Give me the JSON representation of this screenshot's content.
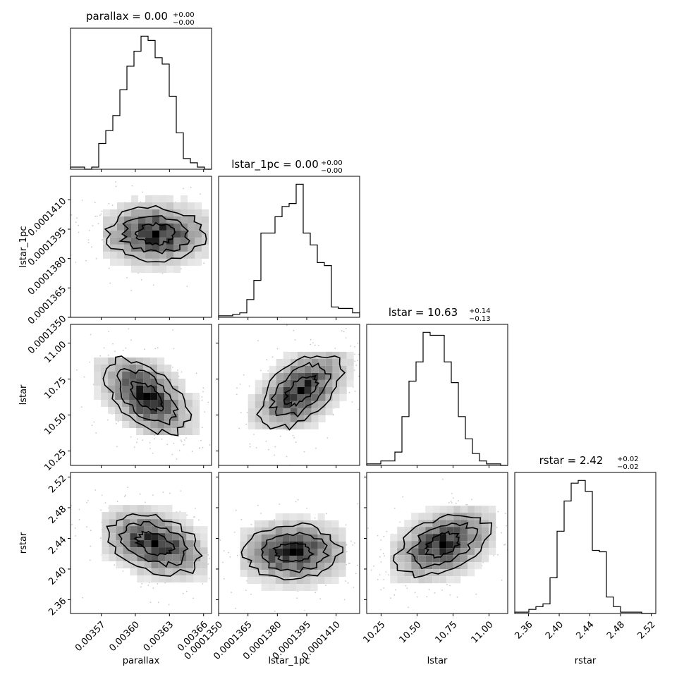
{
  "chart_data": {
    "type": "corner",
    "params": [
      "parallax",
      "lstar_1pc",
      "lstar",
      "rstar"
    ],
    "titles": [
      {
        "param": "parallax",
        "label": "parallax = 0.00",
        "plus": "+0.00",
        "minus": "−0.00"
      },
      {
        "param": "lstar_1pc",
        "label": "lstar_1pc = 0.00",
        "plus": "+0.00",
        "minus": "−0.00"
      },
      {
        "param": "lstar",
        "label": "lstar = 10.63",
        "plus": "+0.14",
        "minus": "−0.13"
      },
      {
        "param": "rstar",
        "label": "rstar = 2.42",
        "plus": "+0.02",
        "minus": "−0.02"
      }
    ],
    "axes": [
      {
        "name": "parallax",
        "range": [
          0.003543,
          0.003667
        ],
        "ticks": [
          0.00357,
          0.0036,
          0.00363,
          0.00366
        ],
        "tick_labels": [
          "0.00357",
          "0.00360",
          "0.00363",
          "0.00366"
        ]
      },
      {
        "name": "lstar_1pc",
        "range": [
          0.000135,
          0.0001422
        ],
        "ticks": [
          0.000135,
          0.0001365,
          0.000138,
          0.0001395,
          0.000141
        ],
        "tick_labels": [
          "0.0001350",
          "0.0001365",
          "0.0001380",
          "0.0001395",
          "0.0001410"
        ]
      },
      {
        "name": "lstar",
        "range": [
          10.15,
          11.13
        ],
        "ticks": [
          10.25,
          10.5,
          10.75,
          11.0
        ],
        "tick_labels": [
          "10.25",
          "10.50",
          "10.75",
          "11.00"
        ]
      },
      {
        "name": "rstar",
        "range": [
          2.342,
          2.526
        ],
        "ticks": [
          2.36,
          2.4,
          2.44,
          2.48,
          2.52
        ],
        "tick_labels": [
          "2.36",
          "2.40",
          "2.44",
          "2.48",
          "2.52"
        ]
      }
    ],
    "histograms": [
      {
        "param": "parallax",
        "counts": [
          1,
          1,
          0,
          1,
          12,
          18,
          25,
          37,
          48,
          55,
          62,
          60,
          52,
          49,
          34,
          17,
          5,
          3,
          1,
          0
        ]
      },
      {
        "param": "lstar_1pc",
        "counts": [
          1,
          1,
          2,
          3,
          12,
          25,
          57,
          57,
          68,
          75,
          77,
          90,
          57,
          49,
          37,
          35,
          7,
          6,
          6,
          3
        ]
      },
      {
        "param": "lstar",
        "counts": [
          1,
          1,
          3,
          3,
          9,
          33,
          57,
          70,
          90,
          88,
          88,
          70,
          56,
          33,
          18,
          8,
          3,
          1,
          1,
          0
        ]
      },
      {
        "param": "rstar",
        "counts": [
          1,
          1,
          3,
          5,
          7,
          26,
          60,
          82,
          95,
          97,
          89,
          46,
          45,
          12,
          5,
          1,
          1,
          1,
          0,
          0
        ]
      }
    ],
    "peaks": [
      {
        "row": "lstar_1pc",
        "col": "parallax",
        "x": 0.003618,
        "y": 0.00013925
      },
      {
        "row": "lstar",
        "col": "parallax",
        "x": 0.00361,
        "y": 10.63
      },
      {
        "row": "lstar",
        "col": "lstar_1pc",
        "x": 0.0001392,
        "y": 10.67
      },
      {
        "row": "rstar",
        "col": "parallax",
        "x": 0.003617,
        "y": 2.433
      },
      {
        "row": "rstar",
        "col": "lstar_1pc",
        "x": 0.0001388,
        "y": 2.422
      },
      {
        "row": "rstar",
        "col": "lstar",
        "x": 10.68,
        "y": 2.432
      }
    ],
    "grid": false,
    "legend": "none"
  }
}
